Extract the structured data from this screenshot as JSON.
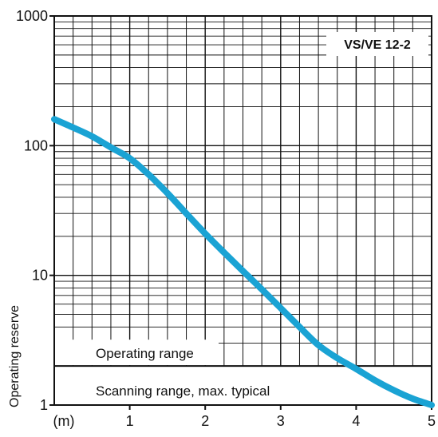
{
  "chart_data": {
    "type": "line",
    "title": "VS/VE 12-2",
    "xlabel": "",
    "ylabel": "Operating reserve",
    "x_unit_label": "(m)",
    "xlim": [
      0,
      5
    ],
    "ylim": [
      1,
      1000
    ],
    "y_scale": "log",
    "grid": true,
    "x_ticks": [
      1,
      2,
      3,
      4,
      5
    ],
    "x_tick_labels": [
      "1",
      "2",
      "3",
      "4",
      "5"
    ],
    "y_ticks": [
      1,
      10,
      100,
      1000
    ],
    "y_tick_labels": [
      "1",
      "10",
      "100",
      "1000"
    ],
    "series": [
      {
        "x": [
          0,
          0.25,
          0.5,
          0.75,
          1.0,
          1.25,
          1.5,
          1.75,
          2.0,
          2.25,
          2.5,
          2.75,
          3.0,
          3.25,
          3.5,
          3.75,
          4.0,
          4.25,
          4.5,
          4.75,
          5.0
        ],
        "y": [
          160,
          138,
          118,
          97,
          80,
          60,
          43,
          30,
          21,
          15,
          10.8,
          7.8,
          5.6,
          4.0,
          2.9,
          2.3,
          1.9,
          1.55,
          1.3,
          1.12,
          1.0
        ]
      }
    ],
    "series_color": "#1aa3d4",
    "threshold": {
      "y": 2,
      "label_above": "Operating range",
      "label_below": "Scanning range, max. typical"
    }
  }
}
